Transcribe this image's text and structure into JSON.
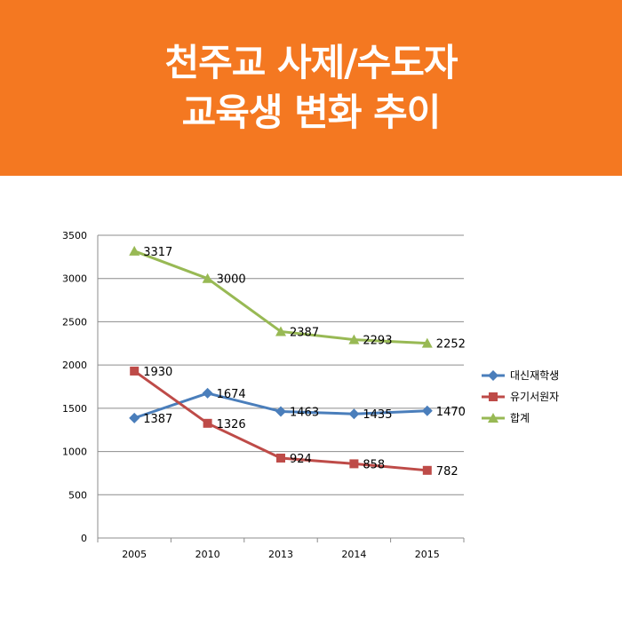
{
  "header": {
    "title_line1": "천주교 사제/수도자",
    "title_line2": "교육생 변화 추이",
    "background": "#f47821"
  },
  "chart_data": {
    "type": "line",
    "categories": [
      "2005",
      "2010",
      "2013",
      "2014",
      "2015"
    ],
    "ylim": [
      0,
      3500
    ],
    "yticks": [
      0,
      500,
      1000,
      1500,
      2000,
      2500,
      3000,
      3500
    ],
    "grid": true,
    "legend_position": "right",
    "series": [
      {
        "name": "대신재학생",
        "values": [
          1387,
          1674,
          1463,
          1435,
          1470
        ],
        "color": "#4a7ebb",
        "marker": "diamond"
      },
      {
        "name": "유기서원자",
        "values": [
          1930,
          1326,
          924,
          858,
          782
        ],
        "color": "#be4b48",
        "marker": "square"
      },
      {
        "name": "합계",
        "values": [
          3317,
          3000,
          2387,
          2293,
          2252
        ],
        "color": "#98b954",
        "marker": "triangle"
      }
    ]
  }
}
